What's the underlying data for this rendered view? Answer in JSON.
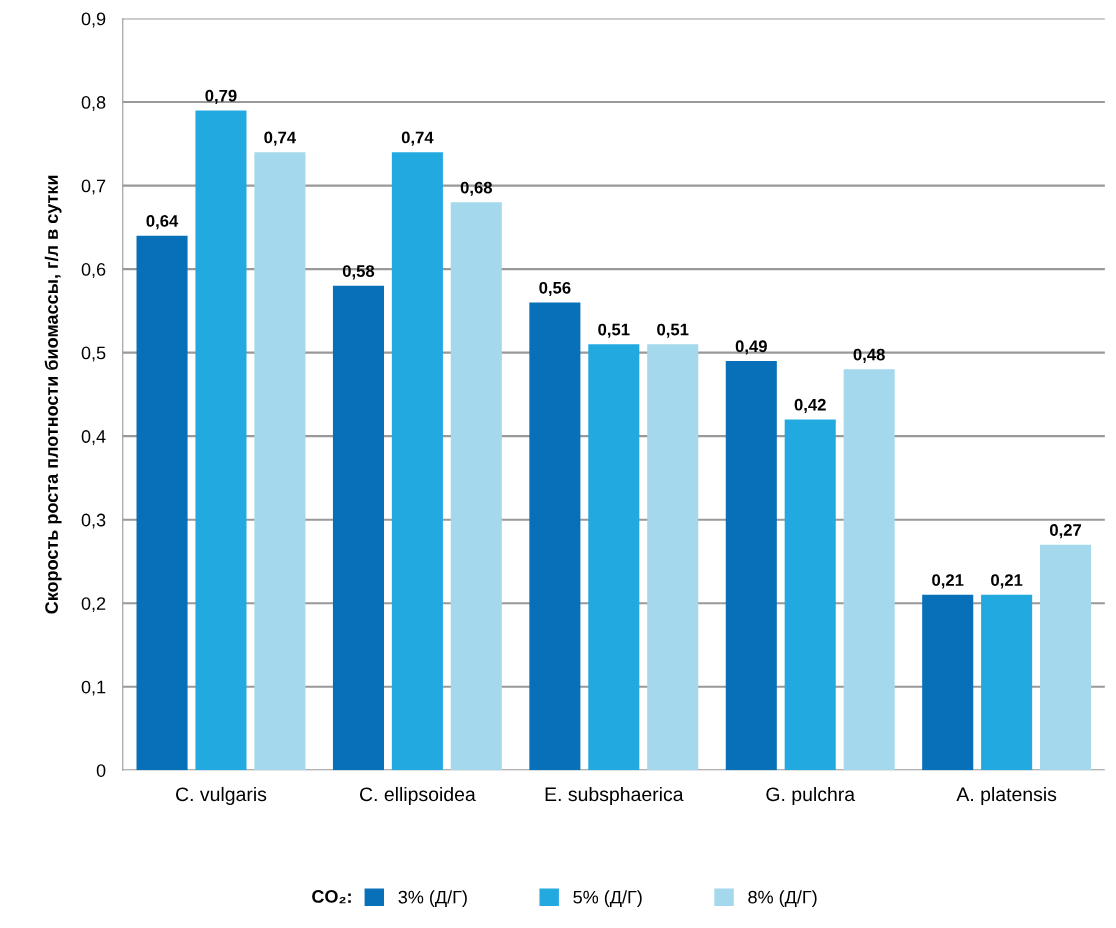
{
  "chart_data": {
    "type": "bar",
    "ylabel": "Скорость роста плотности биомассы, г/л в сутки",
    "categories": [
      "C. vulgaris",
      "C. ellipsoidea",
      "E. subsphaerica",
      "G. pulchra",
      "A. platensis"
    ],
    "series": [
      {
        "name": "3% (Д/Г)",
        "color": "#0870b8",
        "values": [
          0.64,
          0.58,
          0.56,
          0.49,
          0.21
        ],
        "value_labels": [
          "0,64",
          "0,58",
          "0,56",
          "0,49",
          "0,21"
        ]
      },
      {
        "name": "5% (Д/Г)",
        "color": "#22a9e0",
        "values": [
          0.79,
          0.74,
          0.51,
          0.42,
          0.21
        ],
        "value_labels": [
          "0,79",
          "0,74",
          "0,51",
          "0,42",
          "0,21"
        ]
      },
      {
        "name": "8% (Д/Г)",
        "color": "#a4d8ec",
        "values": [
          0.74,
          0.68,
          0.51,
          0.48,
          0.27
        ],
        "value_labels": [
          "0,74",
          "0,68",
          "0,51",
          "0,48",
          "0,27"
        ]
      }
    ],
    "legend_title": "CO₂:",
    "ylim": [
      0,
      0.9
    ],
    "yticks": [
      0,
      {
        "value": 0.1,
        "label": "0,1"
      },
      {
        "value": 0.2,
        "label": "0,2"
      },
      {
        "value": 0.3,
        "label": "0,3"
      },
      {
        "value": 0.4,
        "label": "0,4"
      },
      {
        "value": 0.5,
        "label": "0,5"
      },
      {
        "value": 0.6,
        "label": "0,6"
      },
      {
        "value": 0.7,
        "label": "0,7"
      },
      {
        "value": 0.8,
        "label": "0,8"
      },
      {
        "value": 0.9,
        "label": "0,9"
      }
    ],
    "grid": "y",
    "legend": "bottom"
  }
}
